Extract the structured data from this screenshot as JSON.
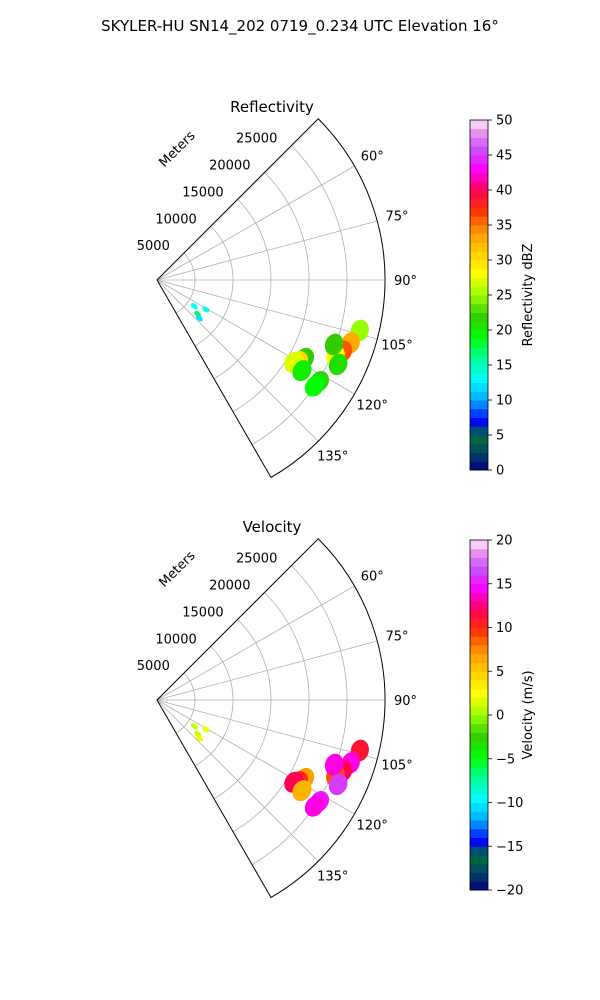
{
  "figure_title": "SKYLER-HU  SN14_202  0719_0.234 UTC Elevation 16°",
  "chart_data": [
    {
      "type": "polar-sector",
      "title": "Reflectivity",
      "radial_label": "Meters",
      "radial_ticks": [
        5000,
        10000,
        15000,
        20000,
        25000
      ],
      "radial_max": 30000,
      "angle_ticks": [
        "60°",
        "75°",
        "90°",
        "105°",
        "120°",
        "135°"
      ],
      "angle_grid_deg": [
        45,
        60,
        75,
        90,
        105,
        120,
        135,
        150
      ],
      "angle_range_deg": [
        45,
        150
      ],
      "colorbar": {
        "label": "Reflectivity dBZ",
        "min": 0,
        "max": 50,
        "ticks": [
          "0",
          "5",
          "10",
          "15",
          "20",
          "25",
          "30",
          "35",
          "40",
          "45",
          "50"
        ]
      },
      "echoes": [
        {
          "azimuth_deg": 104,
          "range_m": 27500,
          "value": 25
        },
        {
          "azimuth_deg": 108,
          "range_m": 26800,
          "value": 33
        },
        {
          "azimuth_deg": 111,
          "range_m": 26200,
          "value": 36
        },
        {
          "azimuth_deg": 113,
          "range_m": 25500,
          "value": 28
        },
        {
          "azimuth_deg": 110,
          "range_m": 24800,
          "value": 22
        },
        {
          "azimuth_deg": 115,
          "range_m": 26300,
          "value": 21
        },
        {
          "azimuth_deg": 118,
          "range_m": 22000,
          "value": 22
        },
        {
          "azimuth_deg": 120,
          "range_m": 21500,
          "value": 30
        },
        {
          "azimuth_deg": 121,
          "range_m": 21000,
          "value": 27
        },
        {
          "azimuth_deg": 122,
          "range_m": 22500,
          "value": 20
        },
        {
          "azimuth_deg": 122,
          "range_m": 25200,
          "value": 21
        },
        {
          "azimuth_deg": 124,
          "range_m": 25000,
          "value": 19
        },
        {
          "azimuth_deg": 125,
          "range_m": 6000,
          "value": 13
        },
        {
          "azimuth_deg": 121,
          "range_m": 7500,
          "value": 14
        },
        {
          "azimuth_deg": 130,
          "range_m": 7000,
          "value": 17
        },
        {
          "azimuth_deg": 132,
          "range_m": 7500,
          "value": 12
        }
      ]
    },
    {
      "type": "polar-sector",
      "title": "Velocity",
      "radial_label": "Meters",
      "radial_ticks": [
        5000,
        10000,
        15000,
        20000,
        25000
      ],
      "radial_max": 30000,
      "angle_ticks": [
        "60°",
        "75°",
        "90°",
        "105°",
        "120°",
        "135°"
      ],
      "angle_grid_deg": [
        45,
        60,
        75,
        90,
        105,
        120,
        135,
        150
      ],
      "angle_range_deg": [
        45,
        150
      ],
      "colorbar": {
        "label": "Velocity (m/s)",
        "min": -20,
        "max": 20,
        "ticks": [
          "−20",
          "−15",
          "−10",
          "−5",
          "0",
          "5",
          "10",
          "15",
          "20"
        ]
      },
      "echoes": [
        {
          "azimuth_deg": 104,
          "range_m": 27500,
          "value": 11
        },
        {
          "azimuth_deg": 108,
          "range_m": 26800,
          "value": 14
        },
        {
          "azimuth_deg": 111,
          "range_m": 26200,
          "value": 12
        },
        {
          "azimuth_deg": 113,
          "range_m": 25500,
          "value": 9
        },
        {
          "azimuth_deg": 110,
          "range_m": 24800,
          "value": 14
        },
        {
          "azimuth_deg": 115,
          "range_m": 26300,
          "value": 16
        },
        {
          "azimuth_deg": 118,
          "range_m": 22000,
          "value": 7
        },
        {
          "azimuth_deg": 120,
          "range_m": 21500,
          "value": 10
        },
        {
          "azimuth_deg": 121,
          "range_m": 21000,
          "value": 12
        },
        {
          "azimuth_deg": 122,
          "range_m": 22500,
          "value": 6
        },
        {
          "azimuth_deg": 122,
          "range_m": 25200,
          "value": 15
        },
        {
          "azimuth_deg": 124,
          "range_m": 25000,
          "value": 14
        },
        {
          "azimuth_deg": 125,
          "range_m": 6000,
          "value": 1
        },
        {
          "azimuth_deg": 121,
          "range_m": 7500,
          "value": 2
        },
        {
          "azimuth_deg": 130,
          "range_m": 7000,
          "value": 1
        },
        {
          "azimuth_deg": 132,
          "range_m": 7500,
          "value": 2
        }
      ]
    }
  ]
}
